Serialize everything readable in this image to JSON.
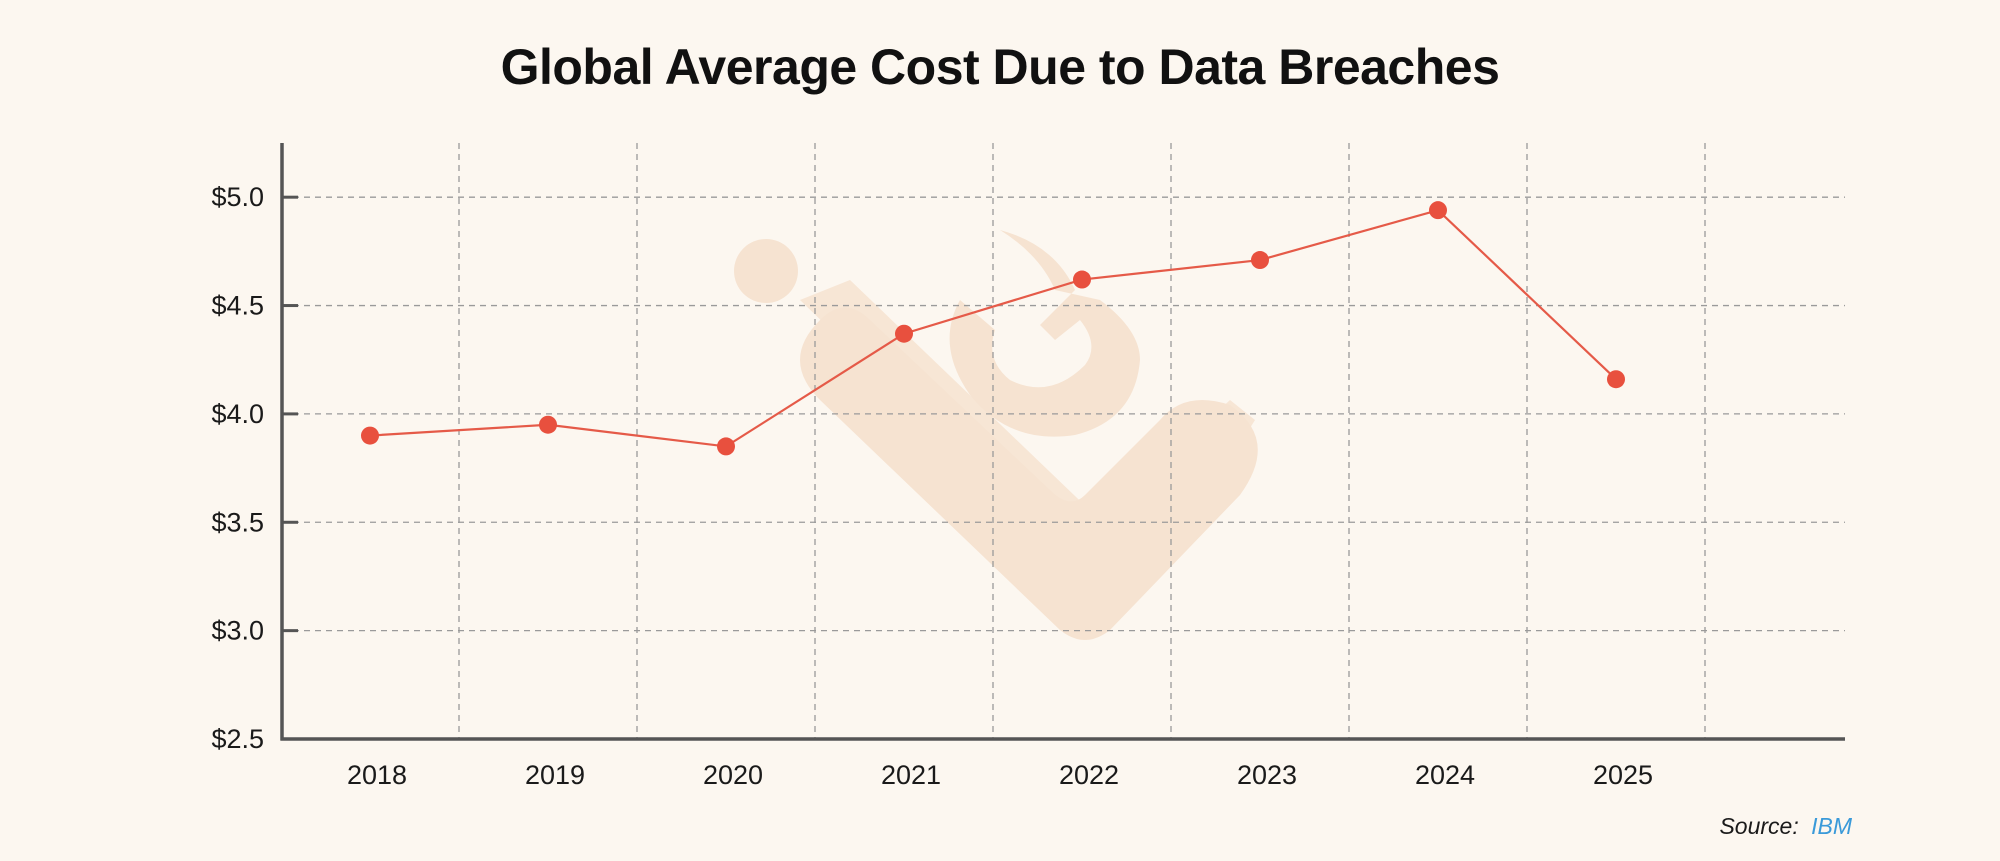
{
  "chart_data": {
    "type": "line",
    "title": "Global Average Cost Due to Data Breaches",
    "xlabel": "",
    "ylabel": "",
    "categories": [
      "2018",
      "2019",
      "2020",
      "2021",
      "2022",
      "2023",
      "2024",
      "2025"
    ],
    "series": [
      {
        "values": [
          3.9,
          3.95,
          3.85,
          4.37,
          4.62,
          4.71,
          4.94,
          4.16
        ]
      }
    ],
    "y_ticks": [
      "$2.5",
      "$3.0",
      "$3.5",
      "$4.0",
      "$4.5",
      "$5.0"
    ],
    "ylim": [
      2.5,
      5.25
    ],
    "grid": true,
    "colors": {
      "line": "#e55a48",
      "marker": "#e8503e",
      "grid": "#9a9a9a",
      "axis": "#555555",
      "watermark": "#f6e3d1"
    }
  },
  "source": {
    "label": "Source:",
    "name": "IBM"
  }
}
